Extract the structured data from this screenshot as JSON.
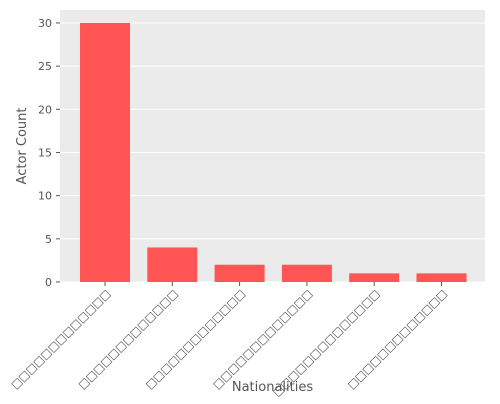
{
  "chart_data": {
    "type": "bar",
    "title": "",
    "xlabel": "Nationalities",
    "ylabel": "Actor Count",
    "categories": [
      "□□□□□□□□□□□□□",
      "□□□□□□□□□□□□□",
      "□□□□□□□□□□□□□",
      "□□□□□□□□□□□□□",
      "□□□□□□□□□□□□□□",
      "□□□□□□□□□□□□□"
    ],
    "values": [
      30,
      4,
      2,
      2,
      1,
      1
    ],
    "ylim": [
      0,
      31.5
    ],
    "yticks": [
      0,
      5,
      10,
      15,
      20,
      25,
      30
    ],
    "grid": true,
    "colors": {
      "bar": "#ff5555",
      "background": "#ebebeb",
      "grid": "#ffffff"
    }
  }
}
